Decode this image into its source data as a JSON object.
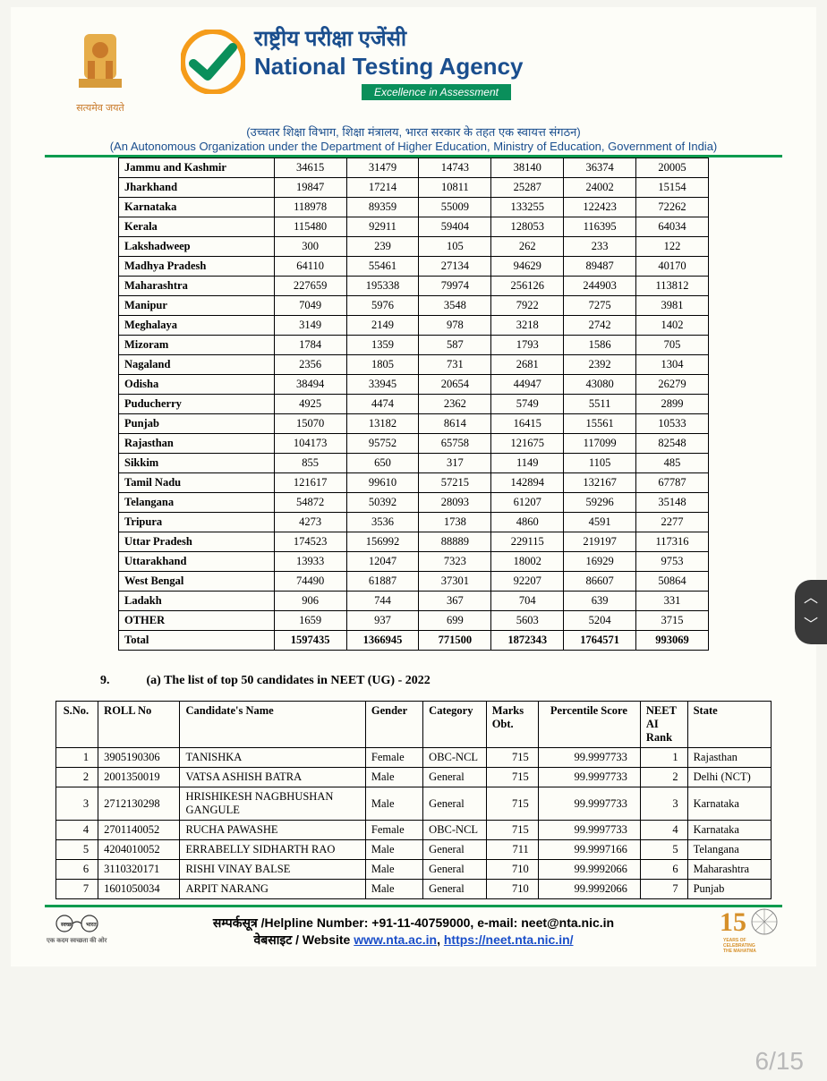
{
  "header": {
    "emblem_caption": "सत्यमेव जयते",
    "hindi_title": "राष्ट्रीय परीक्षा एजेंसी",
    "english_title": "National Testing Agency",
    "tagline": "Excellence in Assessment",
    "subtitle_hi": "(उच्चतर शिक्षा विभाग, शिक्षा मंत्रालय, भारत सरकार के तहत एक स्वायत्त संगठन)",
    "subtitle_en": "(An Autonomous Organization under the Department of Higher Education, Ministry of Education, Government of India)"
  },
  "state_table": {
    "rows": [
      {
        "state": "Jammu and Kashmir",
        "c": [
          "34615",
          "31479",
          "14743",
          "38140",
          "36374",
          "20005"
        ]
      },
      {
        "state": "Jharkhand",
        "c": [
          "19847",
          "17214",
          "10811",
          "25287",
          "24002",
          "15154"
        ]
      },
      {
        "state": "Karnataka",
        "c": [
          "118978",
          "89359",
          "55009",
          "133255",
          "122423",
          "72262"
        ]
      },
      {
        "state": "Kerala",
        "c": [
          "115480",
          "92911",
          "59404",
          "128053",
          "116395",
          "64034"
        ]
      },
      {
        "state": "Lakshadweep",
        "c": [
          "300",
          "239",
          "105",
          "262",
          "233",
          "122"
        ]
      },
      {
        "state": "Madhya Pradesh",
        "c": [
          "64110",
          "55461",
          "27134",
          "94629",
          "89487",
          "40170"
        ]
      },
      {
        "state": "Maharashtra",
        "c": [
          "227659",
          "195338",
          "79974",
          "256126",
          "244903",
          "113812"
        ]
      },
      {
        "state": "Manipur",
        "c": [
          "7049",
          "5976",
          "3548",
          "7922",
          "7275",
          "3981"
        ]
      },
      {
        "state": "Meghalaya",
        "c": [
          "3149",
          "2149",
          "978",
          "3218",
          "2742",
          "1402"
        ]
      },
      {
        "state": "Mizoram",
        "c": [
          "1784",
          "1359",
          "587",
          "1793",
          "1586",
          "705"
        ]
      },
      {
        "state": "Nagaland",
        "c": [
          "2356",
          "1805",
          "731",
          "2681",
          "2392",
          "1304"
        ]
      },
      {
        "state": "Odisha",
        "c": [
          "38494",
          "33945",
          "20654",
          "44947",
          "43080",
          "26279"
        ]
      },
      {
        "state": "Puducherry",
        "c": [
          "4925",
          "4474",
          "2362",
          "5749",
          "5511",
          "2899"
        ]
      },
      {
        "state": "Punjab",
        "c": [
          "15070",
          "13182",
          "8614",
          "16415",
          "15561",
          "10533"
        ]
      },
      {
        "state": "Rajasthan",
        "c": [
          "104173",
          "95752",
          "65758",
          "121675",
          "117099",
          "82548"
        ]
      },
      {
        "state": "Sikkim",
        "c": [
          "855",
          "650",
          "317",
          "1149",
          "1105",
          "485"
        ]
      },
      {
        "state": "Tamil Nadu",
        "c": [
          "121617",
          "99610",
          "57215",
          "142894",
          "132167",
          "67787"
        ]
      },
      {
        "state": "Telangana",
        "c": [
          "54872",
          "50392",
          "28093",
          "61207",
          "59296",
          "35148"
        ]
      },
      {
        "state": "Tripura",
        "c": [
          "4273",
          "3536",
          "1738",
          "4860",
          "4591",
          "2277"
        ]
      },
      {
        "state": "Uttar Pradesh",
        "c": [
          "174523",
          "156992",
          "88889",
          "229115",
          "219197",
          "117316"
        ]
      },
      {
        "state": "Uttarakhand",
        "c": [
          "13933",
          "12047",
          "7323",
          "18002",
          "16929",
          "9753"
        ]
      },
      {
        "state": "West Bengal",
        "c": [
          "74490",
          "61887",
          "37301",
          "92207",
          "86607",
          "50864"
        ]
      },
      {
        "state": "Ladakh",
        "c": [
          "906",
          "744",
          "367",
          "704",
          "639",
          "331"
        ]
      },
      {
        "state": "OTHER",
        "c": [
          "1659",
          "937",
          "699",
          "5603",
          "5204",
          "3715"
        ]
      }
    ],
    "total": {
      "state": "Total",
      "c": [
        "1597435",
        "1366945",
        "771500",
        "1872343",
        "1764571",
        "993069"
      ]
    }
  },
  "section": {
    "index": "9.",
    "label": "(a) The list of top 50 candidates in NEET (UG) - 2022"
  },
  "candidates": {
    "headers": [
      "S.No.",
      "ROLL No",
      "Candidate's  Name",
      "Gender",
      "Category",
      "Marks Obt.",
      "Percentile Score",
      "NEET AI Rank",
      "State"
    ],
    "rows": [
      {
        "sno": "1",
        "roll": "3905190306",
        "name": "TANISHKA",
        "gender": "Female",
        "cat": "OBC-NCL",
        "marks": "715",
        "perc": "99.9997733",
        "rank": "1",
        "state": "Rajasthan"
      },
      {
        "sno": "2",
        "roll": "2001350019",
        "name": "VATSA ASHISH BATRA",
        "gender": "Male",
        "cat": "General",
        "marks": "715",
        "perc": "99.9997733",
        "rank": "2",
        "state": "Delhi (NCT)"
      },
      {
        "sno": "3",
        "roll": "2712130298",
        "name": "HRISHIKESH NAGBHUSHAN GANGULE",
        "gender": "Male",
        "cat": "General",
        "marks": "715",
        "perc": "99.9997733",
        "rank": "3",
        "state": "Karnataka"
      },
      {
        "sno": "4",
        "roll": "2701140052",
        "name": "RUCHA PAWASHE",
        "gender": "Female",
        "cat": "OBC-NCL",
        "marks": "715",
        "perc": "99.9997733",
        "rank": "4",
        "state": "Karnataka"
      },
      {
        "sno": "5",
        "roll": "4204010052",
        "name": "ERRABELLY SIDHARTH RAO",
        "gender": "Male",
        "cat": "General",
        "marks": "711",
        "perc": "99.9997166",
        "rank": "5",
        "state": "Telangana"
      },
      {
        "sno": "6",
        "roll": "3110320171",
        "name": "RISHI VINAY BALSE",
        "gender": "Male",
        "cat": "General",
        "marks": "710",
        "perc": "99.9992066",
        "rank": "6",
        "state": "Maharashtra"
      },
      {
        "sno": "7",
        "roll": "1601050034",
        "name": "ARPIT NARANG",
        "gender": "Male",
        "cat": "General",
        "marks": "710",
        "perc": "99.9992066",
        "rank": "7",
        "state": "Punjab"
      }
    ]
  },
  "footer": {
    "line1_a": "सम्पर्कसूत्र /Helpline Number: +91-11-40759000, e-mail: neet@nta.nic.in",
    "line2_a": "वेबसाइट / Website ",
    "link1": "www.nta.ac.in",
    "sep": ", ",
    "link2": "https://neet.nta.nic.in/",
    "left_tag": "एक कदम स्वच्छता की ओर",
    "badge_num": "15",
    "badge_sub": "YEARS OF CELEBRATING THE MAHATMA"
  },
  "pager": "6/15"
}
